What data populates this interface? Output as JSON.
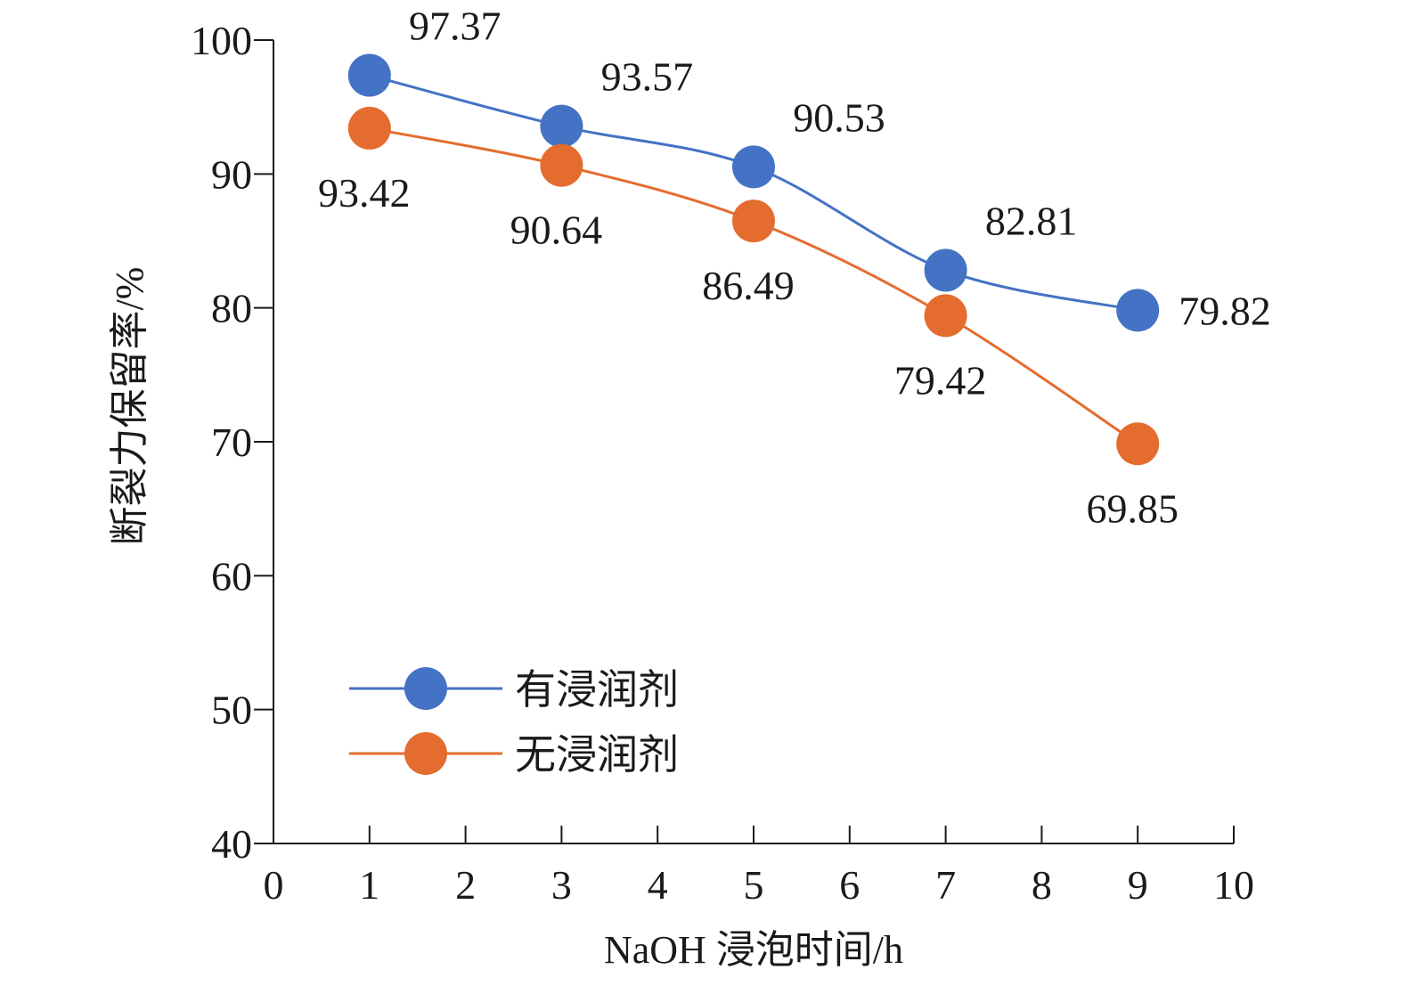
{
  "chart_data": {
    "type": "line",
    "title": "",
    "xlabel": "NaOH 浸泡时间/h",
    "ylabel": "断裂力保留率/%",
    "xlim": [
      0,
      10
    ],
    "ylim": [
      40,
      100
    ],
    "x_ticks": [
      0,
      1,
      2,
      3,
      4,
      5,
      6,
      7,
      8,
      9,
      10
    ],
    "y_ticks": [
      40,
      50,
      60,
      70,
      80,
      90,
      100
    ],
    "x_tick_labels": [
      "0",
      "1",
      "2",
      "3",
      "4",
      "5",
      "6",
      "7",
      "8",
      "9",
      "10"
    ],
    "y_tick_labels": [
      "40",
      "50",
      "60",
      "70",
      "80",
      "90",
      "100"
    ],
    "x": [
      1,
      3,
      5,
      7,
      9
    ],
    "smooth": true,
    "grid": false,
    "legend_position": "bottom-left",
    "series": [
      {
        "name": "有浸润剂",
        "color": "#4472C4",
        "values": [
          97.37,
          93.57,
          90.53,
          82.81,
          79.82
        ],
        "data_labels": [
          "97.37",
          "93.57",
          "90.53",
          "82.81",
          "79.82"
        ],
        "label_placement": [
          "above-right",
          "above-right",
          "above-right",
          "above-right",
          "right"
        ]
      },
      {
        "name": "无浸润剂",
        "color": "#E46C2E",
        "values": [
          93.42,
          90.64,
          86.49,
          79.42,
          69.85
        ],
        "data_labels": [
          "93.42",
          "90.64",
          "86.49",
          "79.42",
          "69.85"
        ],
        "label_placement": [
          "below",
          "below",
          "below",
          "below",
          "below"
        ]
      }
    ]
  }
}
